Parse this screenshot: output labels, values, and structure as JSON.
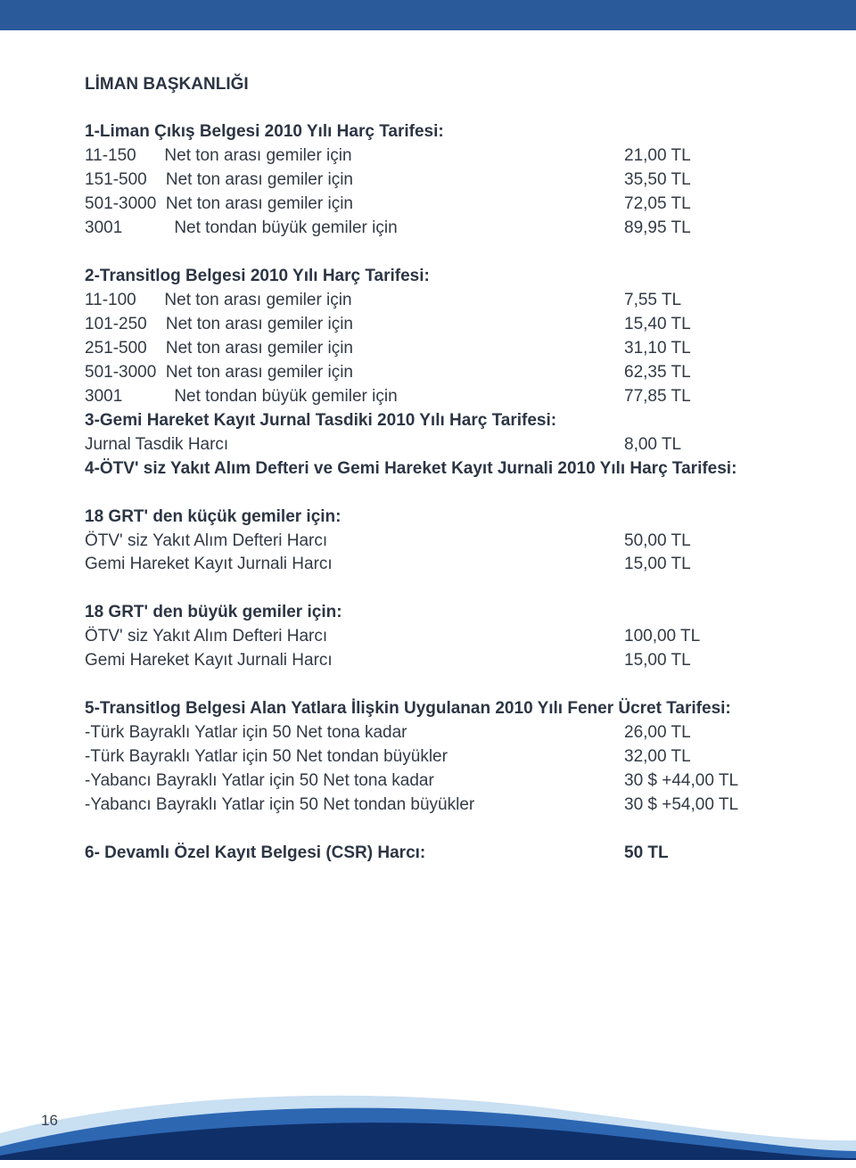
{
  "header_bar_color": "#2a5a9a",
  "page_title": "LİMAN BAŞKANLIĞI",
  "sections": {
    "s1": {
      "title": "1-Liman Çıkış Belgesi 2010 Yılı Harç Tarifesi:",
      "rows": [
        {
          "label": "11-150      Net ton arası gemiler için",
          "value": "21,00 TL"
        },
        {
          "label": "151-500    Net ton arası gemiler için",
          "value": "35,50 TL"
        },
        {
          "label": "501-3000  Net ton arası gemiler için",
          "value": "72,05 TL"
        },
        {
          "label": "3001           Net tondan büyük gemiler için",
          "value": "89,95 TL"
        }
      ]
    },
    "s2": {
      "title": "2-Transitlog Belgesi 2010 Yılı Harç Tarifesi:",
      "rows": [
        {
          "label": "11-100      Net ton arası gemiler için",
          "value": "7,55 TL"
        },
        {
          "label": "101-250    Net ton arası gemiler için",
          "value": "15,40 TL"
        },
        {
          "label": "251-500    Net ton arası gemiler için",
          "value": "31,10 TL"
        },
        {
          "label": "501-3000  Net ton arası gemiler için",
          "value": "62,35 TL"
        },
        {
          "label": "3001           Net tondan büyük gemiler için",
          "value": "77,85 TL"
        }
      ]
    },
    "s3": {
      "title": "3-Gemi Hareket Kayıt Jurnal Tasdiki 2010 Yılı Harç Tarifesi:",
      "rows": [
        {
          "label": "Jurnal Tasdik Harcı",
          "value": "8,00 TL"
        }
      ]
    },
    "s4": {
      "title": "4-ÖTV' siz Yakıt Alım Defteri ve Gemi Hareket Kayıt Jurnali 2010 Yılı Harç Tarifesi:"
    },
    "s4a": {
      "title": "18 GRT' den küçük gemiler için:",
      "rows": [
        {
          "label": "ÖTV' siz Yakıt Alım Defteri Harcı",
          "value": "50,00 TL"
        },
        {
          "label": "Gemi Hareket Kayıt Jurnali Harcı",
          "value": "15,00 TL"
        }
      ]
    },
    "s4b": {
      "title": "18 GRT' den büyük gemiler için:",
      "rows": [
        {
          "label": "ÖTV' siz Yakıt Alım Defteri Harcı",
          "value": "100,00 TL"
        },
        {
          "label": "Gemi Hareket Kayıt Jurnali Harcı",
          "value": "15,00 TL"
        }
      ]
    },
    "s5": {
      "title": "5-Transitlog Belgesi Alan Yatlara İlişkin Uygulanan 2010 Yılı Fener Ücret Tarifesi:",
      "rows": [
        {
          "label": "-Türk Bayraklı Yatlar için 50 Net tona kadar",
          "value": "26,00 TL"
        },
        {
          "label": "-Türk Bayraklı Yatlar için 50 Net tondan büyükler",
          "value": "32,00 TL"
        },
        {
          "label": "-Yabancı Bayraklı Yatlar için 50 Net tona kadar",
          "value": "30 $  +44,00 TL"
        },
        {
          "label": "-Yabancı Bayraklı Yatlar için 50 Net tondan büyükler",
          "value": "30 $  +54,00 TL"
        }
      ]
    },
    "s6": {
      "title_label": "6- Devamlı Özel Kayıt Belgesi (CSR) Harcı:",
      "title_value": "50 TL"
    }
  },
  "page_number": "16",
  "wave_colors": {
    "back": "#c9dff2",
    "mid": "#2d67b2",
    "front": "#0f2f68"
  }
}
